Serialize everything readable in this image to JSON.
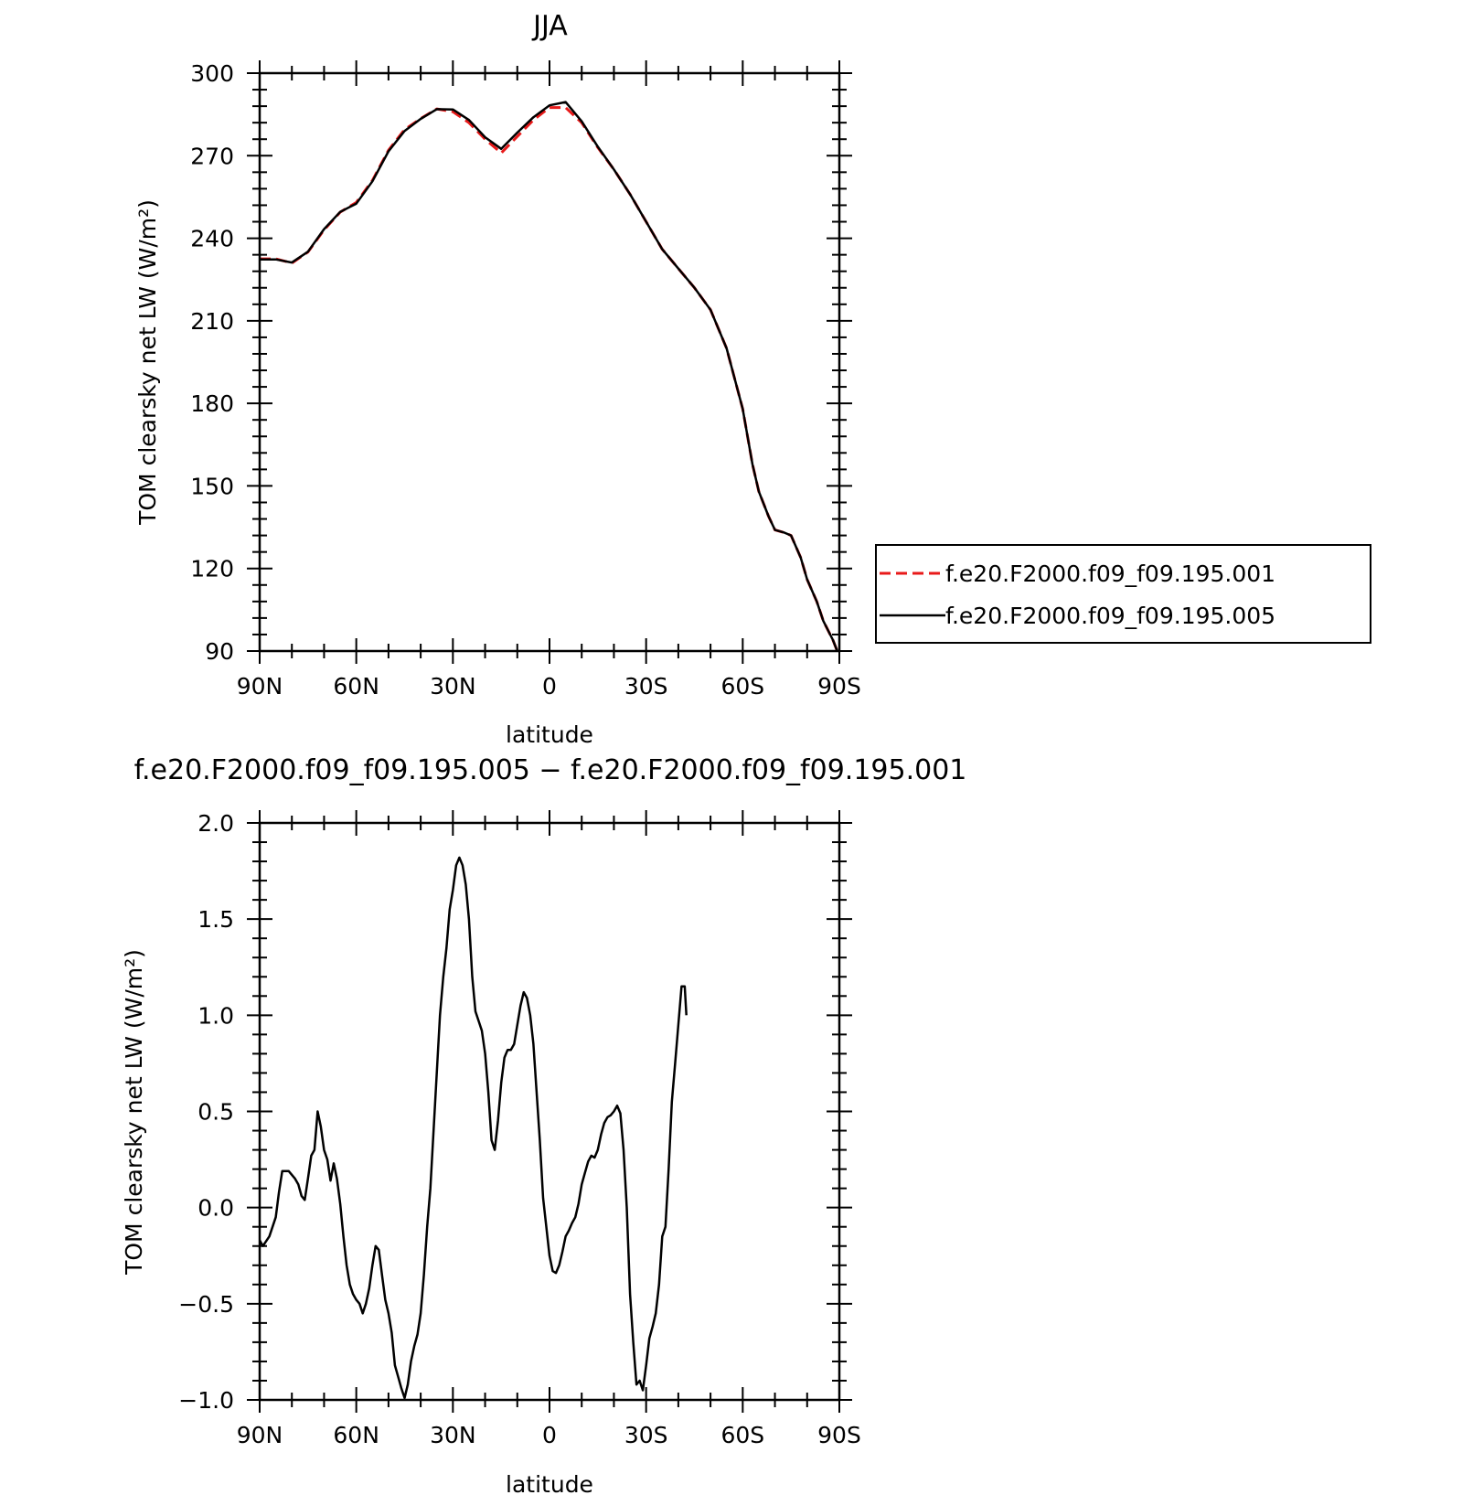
{
  "chart_data": [
    {
      "type": "line",
      "title": "JJA",
      "xlabel": "latitude",
      "ylabel": "TOM clearsky net LW (W/m²)",
      "xlim": [
        90,
        -90
      ],
      "ylim": [
        90,
        300
      ],
      "x_ticks": [
        {
          "value": 90,
          "label": "90N"
        },
        {
          "value": 60,
          "label": "60N"
        },
        {
          "value": 30,
          "label": "30N"
        },
        {
          "value": 0,
          "label": "0"
        },
        {
          "value": -30,
          "label": "30S"
        },
        {
          "value": -60,
          "label": "60S"
        },
        {
          "value": -90,
          "label": "90S"
        }
      ],
      "y_ticks": [
        {
          "value": 300,
          "label": "300"
        },
        {
          "value": 270,
          "label": "270"
        },
        {
          "value": 240,
          "label": "240"
        },
        {
          "value": 210,
          "label": "210"
        },
        {
          "value": 180,
          "label": "180"
        },
        {
          "value": 150,
          "label": "150"
        },
        {
          "value": 120,
          "label": "120"
        },
        {
          "value": 90,
          "label": "90"
        }
      ],
      "legend": "right",
      "x": [
        90,
        85,
        80,
        75,
        70,
        65,
        60,
        55,
        50,
        45,
        40,
        35,
        30,
        25,
        20,
        15,
        10,
        5,
        0,
        -5,
        -10,
        -15,
        -20,
        -25,
        -30,
        -35,
        -40,
        -45,
        -50,
        -55,
        -60,
        -63,
        -65,
        -68,
        -70,
        -73,
        -75,
        -78,
        -80,
        -83,
        -85,
        -88,
        -90
      ],
      "series": [
        {
          "name": "f.e20.F2000.f09_f09.195.001",
          "color": "#e81a1a",
          "dash": "dashed",
          "values": [
            232.5,
            232.5,
            231,
            235,
            243,
            249.5,
            253,
            261,
            272,
            279.5,
            283.5,
            287,
            286,
            282,
            276,
            271,
            277,
            283,
            287.5,
            287.5,
            282,
            273,
            265,
            256,
            246,
            236,
            229,
            222,
            214,
            200,
            178,
            158,
            148,
            139,
            134,
            133,
            132,
            124,
            116,
            108,
            101,
            94,
            88
          ]
        },
        {
          "name": "f.e20.F2000.f09_f09.195.005",
          "color": "#000000",
          "dash": "solid",
          "values": [
            232.3,
            232.3,
            231.2,
            235.1,
            243.3,
            249.6,
            252.6,
            260.7,
            271.6,
            279,
            283.4,
            286.9,
            286.8,
            283,
            276.7,
            272.5,
            278.4,
            284,
            288.3,
            289.5,
            282.5,
            273.3,
            265,
            256,
            246,
            236,
            229,
            222,
            214,
            200,
            178,
            158,
            148,
            139,
            134,
            133,
            132,
            124,
            116,
            108,
            101,
            94,
            88
          ]
        }
      ]
    },
    {
      "type": "line",
      "title": "f.e20.F2000.f09_f09.195.005 − f.e20.F2000.f09_f09.195.001",
      "xlabel": "latitude",
      "ylabel": "TOM clearsky net LW (W/m²)",
      "xlim": [
        90,
        -90
      ],
      "ylim": [
        -1.0,
        2.0
      ],
      "x_ticks": [
        {
          "value": 90,
          "label": "90N"
        },
        {
          "value": 60,
          "label": "60N"
        },
        {
          "value": 30,
          "label": "30N"
        },
        {
          "value": 0,
          "label": "0"
        },
        {
          "value": -30,
          "label": "30S"
        },
        {
          "value": -60,
          "label": "60S"
        },
        {
          "value": -90,
          "label": "90S"
        }
      ],
      "y_ticks": [
        {
          "value": 2.0,
          "label": "2.0"
        },
        {
          "value": 1.5,
          "label": "1.5"
        },
        {
          "value": 1.0,
          "label": "1.0"
        },
        {
          "value": 0.5,
          "label": "0.5"
        },
        {
          "value": 0.0,
          "label": "0.0"
        },
        {
          "value": -0.5,
          "label": "−0.5"
        },
        {
          "value": -1.0,
          "label": "−1.0"
        }
      ],
      "series": [
        {
          "color": "#000000",
          "values": [
            [
              90,
              -0.17
            ],
            [
              89,
              -0.2
            ],
            [
              87,
              -0.15
            ],
            [
              85,
              -0.05
            ],
            [
              84,
              0.08
            ],
            [
              83,
              0.19
            ],
            [
              81,
              0.19
            ],
            [
              79,
              0.15
            ],
            [
              78,
              0.12
            ],
            [
              77,
              0.06
            ],
            [
              76,
              0.04
            ],
            [
              75,
              0.15
            ],
            [
              74,
              0.27
            ],
            [
              73,
              0.3
            ],
            [
              72,
              0.5
            ],
            [
              71,
              0.42
            ],
            [
              70,
              0.3
            ],
            [
              69,
              0.25
            ],
            [
              68,
              0.14
            ],
            [
              67,
              0.23
            ],
            [
              66,
              0.15
            ],
            [
              65,
              0.02
            ],
            [
              64,
              -0.15
            ],
            [
              63,
              -0.3
            ],
            [
              62,
              -0.4
            ],
            [
              61,
              -0.45
            ],
            [
              60,
              -0.48
            ],
            [
              59,
              -0.5
            ],
            [
              58,
              -0.55
            ],
            [
              57,
              -0.5
            ],
            [
              56,
              -0.42
            ],
            [
              55,
              -0.3
            ],
            [
              54,
              -0.2
            ],
            [
              53,
              -0.22
            ],
            [
              52,
              -0.35
            ],
            [
              51,
              -0.48
            ],
            [
              50,
              -0.55
            ],
            [
              49,
              -0.65
            ],
            [
              48,
              -0.82
            ],
            [
              47,
              -0.88
            ],
            [
              46,
              -0.94
            ],
            [
              45,
              -0.99
            ],
            [
              44,
              -0.92
            ],
            [
              43,
              -0.8
            ],
            [
              42,
              -0.72
            ],
            [
              41,
              -0.66
            ],
            [
              40,
              -0.55
            ],
            [
              39,
              -0.35
            ],
            [
              38,
              -0.1
            ],
            [
              37,
              0.1
            ],
            [
              36,
              0.4
            ],
            [
              35,
              0.7
            ],
            [
              34,
              1.0
            ],
            [
              33,
              1.2
            ],
            [
              32,
              1.35
            ],
            [
              31,
              1.55
            ],
            [
              30,
              1.65
            ],
            [
              29,
              1.78
            ],
            [
              28,
              1.82
            ],
            [
              27,
              1.78
            ],
            [
              26,
              1.68
            ],
            [
              25,
              1.5
            ],
            [
              24,
              1.2
            ],
            [
              23,
              1.02
            ],
            [
              22,
              0.97
            ],
            [
              21,
              0.92
            ],
            [
              20,
              0.8
            ],
            [
              19,
              0.6
            ],
            [
              18,
              0.35
            ],
            [
              17,
              0.3
            ],
            [
              16,
              0.45
            ],
            [
              15,
              0.65
            ],
            [
              14,
              0.78
            ],
            [
              13,
              0.82
            ],
            [
              12,
              0.82
            ],
            [
              11,
              0.85
            ],
            [
              10,
              0.95
            ],
            [
              9,
              1.05
            ],
            [
              8,
              1.12
            ],
            [
              7,
              1.09
            ],
            [
              6,
              1.0
            ],
            [
              5,
              0.85
            ],
            [
              4,
              0.6
            ],
            [
              3,
              0.35
            ],
            [
              2,
              0.05
            ],
            [
              1,
              -0.1
            ],
            [
              0,
              -0.25
            ],
            [
              -1,
              -0.33
            ],
            [
              -2,
              -0.34
            ],
            [
              -3,
              -0.3
            ],
            [
              -4,
              -0.23
            ],
            [
              -5,
              -0.15
            ],
            [
              -6,
              -0.12
            ],
            [
              -7,
              -0.08
            ],
            [
              -8,
              -0.05
            ],
            [
              -9,
              0.02
            ],
            [
              -10,
              0.12
            ],
            [
              -11,
              0.18
            ],
            [
              -12,
              0.24
            ],
            [
              -13,
              0.27
            ],
            [
              -14,
              0.26
            ],
            [
              -15,
              0.3
            ],
            [
              -16,
              0.38
            ],
            [
              -17,
              0.44
            ],
            [
              -18,
              0.47
            ],
            [
              -19,
              0.48
            ],
            [
              -20,
              0.5
            ],
            [
              -21,
              0.53
            ],
            [
              -22,
              0.49
            ],
            [
              -23,
              0.3
            ],
            [
              -24,
              0.0
            ],
            [
              -25,
              -0.45
            ],
            [
              -26,
              -0.7
            ],
            [
              -27,
              -0.92
            ],
            [
              -28,
              -0.9
            ],
            [
              -29,
              -0.95
            ],
            [
              -30,
              -0.82
            ],
            [
              -31,
              -0.68
            ],
            [
              -32,
              -0.62
            ],
            [
              -33,
              -0.55
            ],
            [
              -34,
              -0.4
            ],
            [
              -35,
              -0.15
            ],
            [
              -36,
              -0.1
            ],
            [
              -37,
              0.2
            ],
            [
              -38,
              0.55
            ],
            [
              -39,
              0.75
            ],
            [
              -40,
              0.95
            ],
            [
              -41,
              1.15
            ],
            [
              -42,
              1.15
            ],
            [
              -42.5,
              1.0
            ]
          ]
        }
      ]
    }
  ]
}
